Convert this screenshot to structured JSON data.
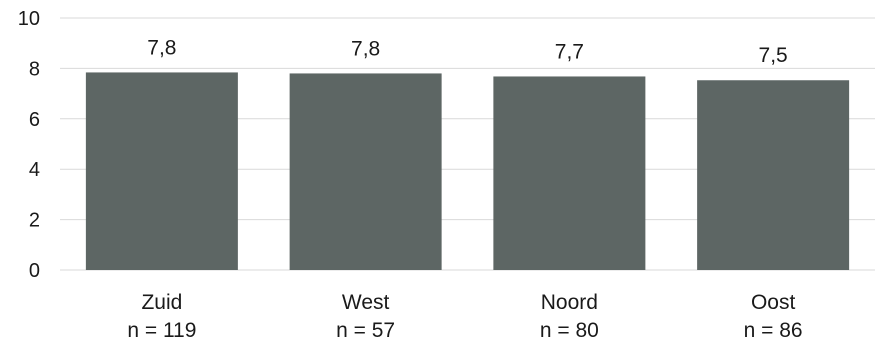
{
  "chart_data": {
    "type": "bar",
    "categories": [
      "Zuid",
      "West",
      "Noord",
      "Oost"
    ],
    "sublabels": [
      "n = 119",
      "n = 57",
      "n = 80",
      "n = 86"
    ],
    "values": [
      7.84,
      7.8,
      7.68,
      7.53
    ],
    "data_labels": [
      "7,8",
      "7,8",
      "7,7",
      "7,5"
    ],
    "ylim": [
      0,
      10
    ],
    "yticks": [
      "0",
      "2",
      "4",
      "6",
      "8",
      "10"
    ],
    "grid": true,
    "bar_color": "#5d6664",
    "grid_color": "#d9d9d9"
  }
}
